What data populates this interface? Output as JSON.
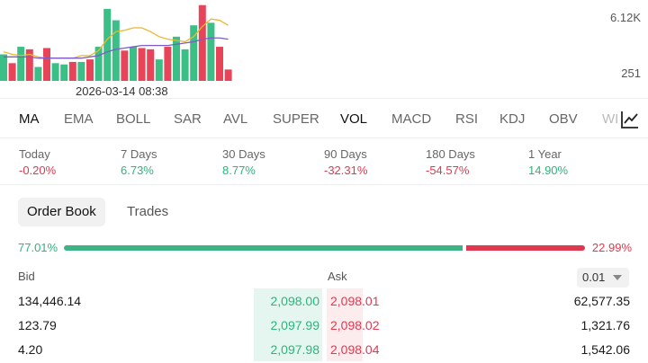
{
  "chart": {
    "y_max_label": "6.12K",
    "y_min_label": "251",
    "timestamp": "2026-03-14 08:38",
    "colors": {
      "up": "#3cbf86",
      "down": "#e84459",
      "ma_short": "#e8b92f",
      "ma_long": "#7b5cc4"
    }
  },
  "chart_data": {
    "type": "bar",
    "title": "",
    "xlabel": "",
    "ylabel": "",
    "ylim": [
      251,
      6120
    ],
    "series": [
      {
        "values": [
          2100,
          1400,
          2700,
          2500,
          1100,
          2600,
          1400,
          1300,
          1500,
          1500,
          1700,
          2700,
          5700,
          4800,
          2400,
          2700,
          2600,
          2500,
          1700,
          2700,
          3500,
          2500,
          4400,
          6000,
          4600,
          2700,
          900
        ],
        "directions": [
          "up",
          "down",
          "up",
          "down",
          "up",
          "down",
          "up",
          "up",
          "down",
          "up",
          "down",
          "up",
          "up",
          "up",
          "down",
          "up",
          "down",
          "down",
          "up",
          "down",
          "up",
          "up",
          "up",
          "down",
          "up",
          "down",
          "down"
        ]
      }
    ],
    "overlays": [
      {
        "color": "#e8b92f",
        "values": [
          2300,
          2100,
          2000,
          2100,
          1900,
          1800,
          1800,
          1800,
          1800,
          2000,
          2000,
          2400,
          3300,
          3900,
          4000,
          4200,
          4200,
          3900,
          3500,
          3300,
          3200,
          3100,
          3500,
          4300,
          4900,
          4800,
          4400
        ]
      },
      {
        "color": "#7b5cc4",
        "values": [
          1900,
          1900,
          1900,
          1900,
          1800,
          1800,
          1800,
          1800,
          1800,
          1800,
          1900,
          2000,
          2300,
          2500,
          2600,
          2700,
          2800,
          2800,
          2800,
          2800,
          2900,
          3000,
          3100,
          3300,
          3400,
          3400,
          3300
        ]
      }
    ]
  },
  "indicators": {
    "items": [
      "MA",
      "EMA",
      "BOLL",
      "SAR",
      "AVL",
      "SUPER",
      "VOL",
      "MACD",
      "RSI",
      "KDJ",
      "OBV",
      "WI"
    ],
    "trend_icon": "line-chart-icon"
  },
  "performance": [
    {
      "label": "Today",
      "value": "-0.20%",
      "dir": "neg"
    },
    {
      "label": "7 Days",
      "value": "6.73%",
      "dir": "pos"
    },
    {
      "label": "30 Days",
      "value": "8.77%",
      "dir": "pos"
    },
    {
      "label": "90 Days",
      "value": "-32.31%",
      "dir": "neg"
    },
    {
      "label": "180 Days",
      "value": "-54.57%",
      "dir": "neg"
    },
    {
      "label": "1 Year",
      "value": "14.90%",
      "dir": "pos"
    }
  ],
  "tabs": {
    "order_book": "Order Book",
    "trades": "Trades"
  },
  "ratio": {
    "bid_label": "77.01%",
    "ask_label": "22.99%",
    "bid_fraction": 0.7701
  },
  "book": {
    "bid_header": "Bid",
    "ask_header": "Ask",
    "precision": "0.01",
    "rows": [
      {
        "bid_qty": "134,446.14",
        "bid_price": "2,098.00",
        "ask_price": "2,098.01",
        "ask_qty": "62,577.35"
      },
      {
        "bid_qty": "123.79",
        "bid_price": "2,097.99",
        "ask_price": "2,098.02",
        "ask_qty": "1,321.76"
      },
      {
        "bid_qty": "4.20",
        "bid_price": "2,097.98",
        "ask_price": "2,098.04",
        "ask_qty": "1,542.06"
      }
    ]
  }
}
